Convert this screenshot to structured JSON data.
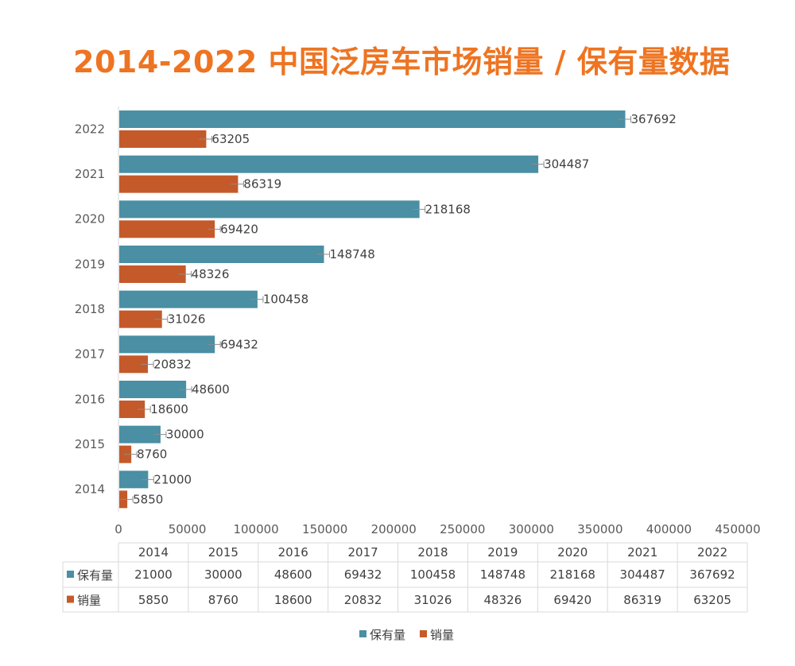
{
  "chart_data": {
    "type": "bar",
    "orientation": "horizontal",
    "title": "2014-2022 中国泛房车市场销量 / 保有量数据",
    "categories": [
      "2014",
      "2015",
      "2016",
      "2017",
      "2018",
      "2019",
      "2020",
      "2021",
      "2022"
    ],
    "series": [
      {
        "name": "保有量",
        "color": "#4A8FA3",
        "values": [
          21000,
          30000,
          48600,
          69432,
          100458,
          148748,
          218168,
          304487,
          367692
        ]
      },
      {
        "name": "销量",
        "color": "#C45A2A",
        "values": [
          5850,
          8760,
          18600,
          20832,
          31026,
          48326,
          69420,
          86319,
          63205
        ]
      }
    ],
    "xlim": [
      0,
      450000
    ],
    "x_ticks": [
      "0",
      "50000",
      "100000",
      "150000",
      "200000",
      "250000",
      "300000",
      "350000",
      "400000",
      "450000"
    ],
    "legend": "bottom",
    "data_table": true
  }
}
